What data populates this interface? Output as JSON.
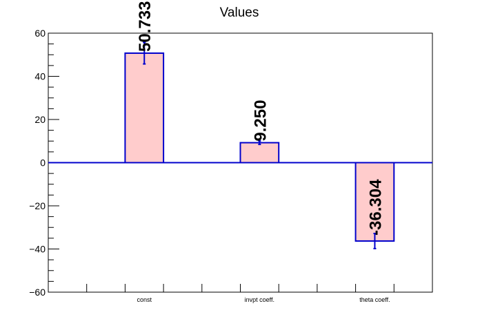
{
  "chart_data": {
    "type": "bar",
    "title": "Values",
    "xlabel": "",
    "ylabel": "",
    "categories": [
      "const",
      "invpt coeff.",
      "theta coeff."
    ],
    "values": [
      50.733,
      9.25,
      -36.304
    ],
    "errors": [
      5.0,
      0.8,
      3.5
    ],
    "value_labels": [
      "50.733",
      "9.250",
      "-36.304"
    ],
    "ylim": [
      -60,
      60
    ],
    "yticks": [
      -60,
      -40,
      -20,
      0,
      20,
      40,
      60
    ],
    "ytick_labels": [
      "−60",
      "−40",
      "−20",
      "0",
      "20",
      "40",
      "60"
    ],
    "grid": false,
    "legend": "none",
    "colors": {
      "bar_fill": "#ffcccc",
      "bar_edge": "#0000cc",
      "zero_line": "#0000cc",
      "axis": "#000000",
      "error_bar": "#0000cc",
      "label": "#000000"
    }
  }
}
